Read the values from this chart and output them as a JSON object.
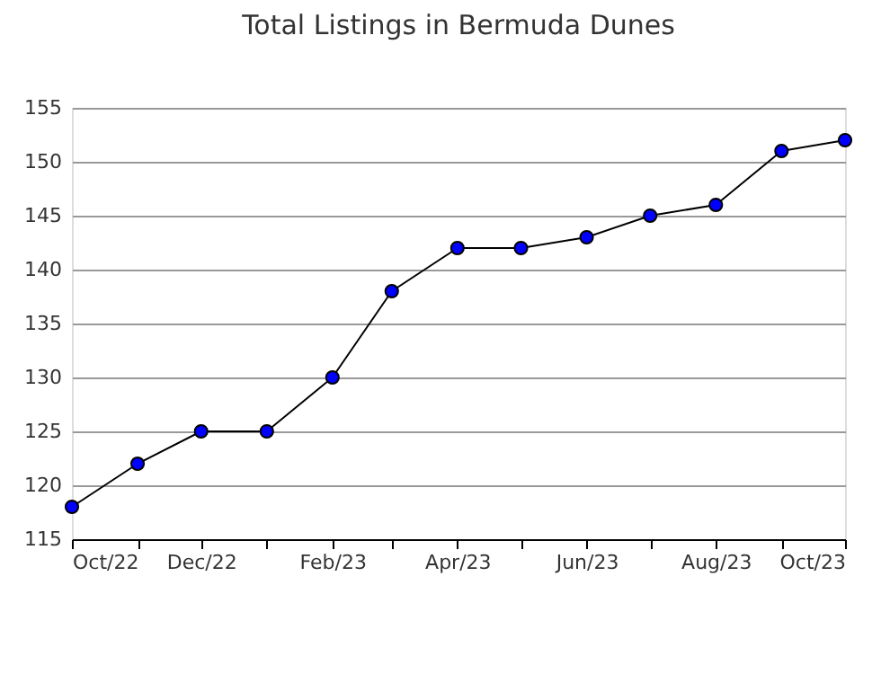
{
  "chart_data": {
    "type": "line",
    "title": "Total Listings in Bermuda Dunes",
    "x": [
      "2022-10",
      "2022-11",
      "2022-12",
      "2023-01",
      "2023-02",
      "2023-03",
      "2023-04",
      "2023-05",
      "2023-06",
      "2023-07",
      "2023-08",
      "2023-09",
      "2023-10"
    ],
    "series": [
      {
        "color": "#0000ff",
        "values": [
          118,
          122,
          125,
          125,
          130,
          138,
          142,
          142,
          143,
          145,
          146,
          151,
          152
        ]
      }
    ],
    "xlim": [
      "2022-10",
      "2023-10"
    ],
    "xticks": [
      {
        "value": "2022-10",
        "label": "Oct/22"
      },
      {
        "value": "2022-11",
        "label": null
      },
      {
        "value": "2022-12",
        "label": "Dec/22"
      },
      {
        "value": "2023-01",
        "label": null
      },
      {
        "value": "2023-02",
        "label": "Feb/23"
      },
      {
        "value": "2023-03",
        "label": null
      },
      {
        "value": "2023-04",
        "label": "Apr/23"
      },
      {
        "value": "2023-05",
        "label": null
      },
      {
        "value": "2023-06",
        "label": "Jun/23"
      },
      {
        "value": "2023-07",
        "label": null
      },
      {
        "value": "2023-08",
        "label": "Aug/23"
      },
      {
        "value": "2023-09",
        "label": null
      },
      {
        "value": "2023-10",
        "label": "Oct/23"
      }
    ],
    "ylim": [
      115,
      155
    ],
    "yticks": [
      115,
      120,
      125,
      130,
      135,
      140,
      145,
      150,
      155
    ],
    "grid": "y",
    "marker": "circle",
    "line_style": "solid",
    "legend": false
  }
}
